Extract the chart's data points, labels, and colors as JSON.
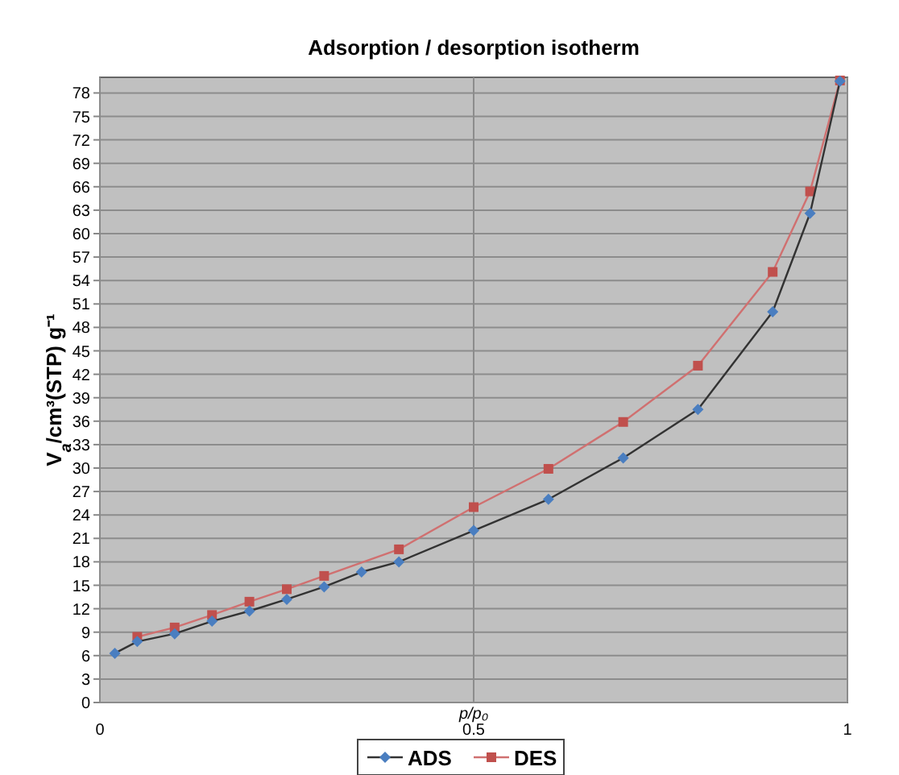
{
  "chart_data": {
    "type": "line",
    "title": "Adsorption / desorption isotherm",
    "xlabel": "p/p₀",
    "ylabel": "V$_{a}$/cm³(STP) g⁻¹",
    "xlim": [
      0,
      1
    ],
    "xticks": [
      0,
      0.5,
      1
    ],
    "ylim": [
      0,
      80
    ],
    "yticks": [
      0,
      3,
      6,
      9,
      12,
      15,
      18,
      21,
      24,
      27,
      30,
      33,
      36,
      39,
      42,
      45,
      48,
      51,
      54,
      57,
      60,
      63,
      66,
      69,
      72,
      75,
      78
    ],
    "grid": true,
    "legend": "bottom",
    "series": [
      {
        "name": "ADS",
        "color": "#333333",
        "marker": "diamond",
        "x": [
          0.02,
          0.05,
          0.1,
          0.15,
          0.2,
          0.25,
          0.3,
          0.35,
          0.4,
          0.5,
          0.6,
          0.7,
          0.8,
          0.9,
          0.95,
          0.99
        ],
        "values": [
          6.3,
          7.8,
          8.8,
          10.4,
          11.7,
          13.2,
          14.8,
          16.7,
          18,
          22,
          26,
          31.3,
          37.5,
          50,
          62.6,
          79.5
        ]
      },
      {
        "name": "DES",
        "color": "#d07070",
        "marker": "square",
        "x": [
          0.05,
          0.1,
          0.15,
          0.2,
          0.25,
          0.3,
          0.4,
          0.5,
          0.6,
          0.7,
          0.8,
          0.9,
          0.95,
          0.99
        ],
        "values": [
          8.4,
          9.6,
          11.2,
          12.9,
          14.5,
          16.2,
          19.6,
          25,
          29.9,
          35.9,
          43.1,
          55.1,
          65.4,
          79.6
        ]
      }
    ]
  }
}
